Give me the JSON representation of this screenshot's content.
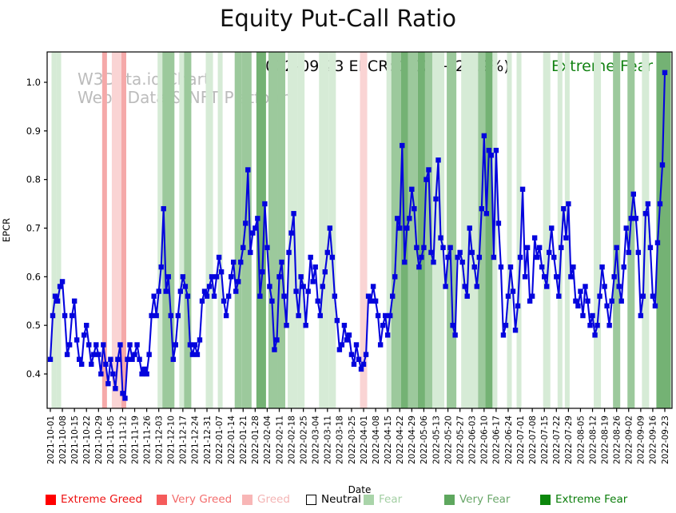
{
  "title": "Equity Put-Call Ratio",
  "watermark": {
    "line1": "W3Data.io Chart",
    "line2": "Web3 Data & NFT Platform"
  },
  "annotation": {
    "text": "2022-09-23 EPCR: 1.02 (+22.9%)",
    "status": "Extreme Fear",
    "status_color": "#128212"
  },
  "axes": {
    "x_label": "Date",
    "y_label": "EPCR",
    "y_tick_labels": [
      "0.4",
      "0.5",
      "0.6",
      "0.7",
      "0.8",
      "0.9",
      "1.0"
    ]
  },
  "legend": [
    {
      "label": "Extreme Greed",
      "swatch": "#ff0000",
      "text_color": "#ee1111",
      "border": "#ff0000"
    },
    {
      "label": "Very Greed",
      "swatch": "#f55b5b",
      "text_color": "#f36c6c",
      "border": "#f55b5b"
    },
    {
      "label": "Greed",
      "swatch": "#f8b6b6",
      "text_color": "#f4b4b4",
      "border": "#f8b6b6"
    },
    {
      "label": "Neutral",
      "swatch": "#ffffff",
      "text_color": "#000000",
      "border": "#000000"
    },
    {
      "label": "Fear",
      "swatch": "#a9d4a9",
      "text_color": "#a3cfa3",
      "border": "#a9d4a9"
    },
    {
      "label": "Very Fear",
      "swatch": "#5ea75e",
      "text_color": "#6aa76a",
      "border": "#5ea75e"
    },
    {
      "label": "Extreme Fear",
      "swatch": "#0c870c",
      "text_color": "#0a7d0a",
      "border": "#0c870c"
    }
  ],
  "chart_data": {
    "type": "line",
    "title": "Equity Put-Call Ratio",
    "xlabel": "Date",
    "ylabel": "EPCR",
    "ylim": [
      0.33,
      1.06
    ],
    "y_ticks": [
      0.4,
      0.5,
      0.6,
      0.7,
      0.8,
      0.9,
      1.0
    ],
    "grid": false,
    "legend_position": "bottom",
    "x_tick_labels": [
      "2021-10-01",
      "2021-10-08",
      "2021-10-15",
      "2021-10-22",
      "2021-10-29",
      "2021-11-05",
      "2021-11-12",
      "2021-11-19",
      "2021-11-26",
      "2021-12-03",
      "2021-12-10",
      "2021-12-17",
      "2021-12-24",
      "2021-12-31",
      "2022-01-07",
      "2022-01-14",
      "2022-01-21",
      "2022-01-28",
      "2022-02-04",
      "2022-02-11",
      "2022-02-18",
      "2022-02-25",
      "2022-03-04",
      "2022-03-11",
      "2022-03-18",
      "2022-03-25",
      "2022-04-01",
      "2022-04-08",
      "2022-04-15",
      "2022-04-22",
      "2022-04-29",
      "2022-05-06",
      "2022-05-13",
      "2022-05-20",
      "2022-05-27",
      "2022-06-03",
      "2022-06-10",
      "2022-06-17",
      "2022-06-24",
      "2022-07-01",
      "2022-07-08",
      "2022-07-15",
      "2022-07-22",
      "2022-07-29",
      "2022-08-05",
      "2022-08-12",
      "2022-08-19",
      "2022-08-26",
      "2022-09-02",
      "2022-09-09",
      "2022-09-16",
      "2022-09-23"
    ],
    "ticks_every_n_points": 5,
    "series": [
      {
        "name": "EPCR",
        "color": "#0404dd",
        "marker": "square",
        "last_point": {
          "date": "2022-09-23",
          "value": 1.02,
          "change_pct": 22.9,
          "sentiment": "Extreme Fear"
        },
        "values": [
          0.43,
          0.52,
          0.56,
          0.55,
          0.58,
          0.59,
          0.52,
          0.44,
          0.46,
          0.52,
          0.55,
          0.47,
          0.43,
          0.42,
          0.48,
          0.5,
          0.46,
          0.42,
          0.44,
          0.46,
          0.44,
          0.4,
          0.46,
          0.42,
          0.38,
          0.43,
          0.4,
          0.37,
          0.43,
          0.46,
          0.36,
          0.35,
          0.43,
          0.46,
          0.43,
          0.44,
          0.46,
          0.43,
          0.4,
          0.41,
          0.4,
          0.44,
          0.52,
          0.56,
          0.52,
          0.57,
          0.62,
          0.74,
          0.57,
          0.6,
          0.52,
          0.43,
          0.46,
          0.52,
          0.57,
          0.6,
          0.58,
          0.56,
          0.46,
          0.44,
          0.46,
          0.44,
          0.47,
          0.55,
          0.57,
          0.56,
          0.58,
          0.6,
          0.56,
          0.6,
          0.64,
          0.61,
          0.55,
          0.52,
          0.56,
          0.6,
          0.63,
          0.57,
          0.59,
          0.63,
          0.66,
          0.71,
          0.82,
          0.65,
          0.69,
          0.7,
          0.72,
          0.56,
          0.61,
          0.75,
          0.66,
          0.58,
          0.55,
          0.45,
          0.47,
          0.6,
          0.63,
          0.56,
          0.5,
          0.65,
          0.69,
          0.73,
          0.57,
          0.52,
          0.6,
          0.58,
          0.5,
          0.57,
          0.64,
          0.59,
          0.62,
          0.55,
          0.52,
          0.58,
          0.61,
          0.65,
          0.7,
          0.64,
          0.56,
          0.51,
          0.45,
          0.46,
          0.5,
          0.47,
          0.48,
          0.44,
          0.42,
          0.46,
          0.43,
          0.41,
          0.42,
          0.44,
          0.56,
          0.55,
          0.58,
          0.55,
          0.52,
          0.46,
          0.5,
          0.52,
          0.48,
          0.52,
          0.56,
          0.6,
          0.72,
          0.7,
          0.87,
          0.63,
          0.7,
          0.72,
          0.78,
          0.74,
          0.66,
          0.62,
          0.64,
          0.66,
          0.8,
          0.82,
          0.65,
          0.63,
          0.76,
          0.84,
          0.68,
          0.66,
          0.58,
          0.64,
          0.66,
          0.5,
          0.48,
          0.64,
          0.65,
          0.63,
          0.58,
          0.56,
          0.7,
          0.65,
          0.62,
          0.58,
          0.64,
          0.74,
          0.89,
          0.73,
          0.86,
          0.85,
          0.64,
          0.86,
          0.71,
          0.62,
          0.48,
          0.5,
          0.56,
          0.62,
          0.57,
          0.49,
          0.54,
          0.64,
          0.78,
          0.6,
          0.66,
          0.55,
          0.56,
          0.68,
          0.64,
          0.66,
          0.62,
          0.6,
          0.58,
          0.65,
          0.7,
          0.64,
          0.6,
          0.56,
          0.66,
          0.74,
          0.68,
          0.75,
          0.6,
          0.62,
          0.55,
          0.54,
          0.57,
          0.52,
          0.58,
          0.55,
          0.5,
          0.52,
          0.48,
          0.5,
          0.56,
          0.62,
          0.58,
          0.54,
          0.5,
          0.55,
          0.6,
          0.66,
          0.58,
          0.55,
          0.62,
          0.7,
          0.65,
          0.72,
          0.77,
          0.72,
          0.65,
          0.52,
          0.56,
          0.73,
          0.75,
          0.66,
          0.56,
          0.54,
          0.67,
          0.75,
          0.83,
          1.02
        ]
      }
    ],
    "band_colors": {
      "extreme_greed": "#ff0000",
      "very_greed": "#f5a9a9",
      "greed": "#fad4d4",
      "neutral": "#ffffff",
      "fear": "#d6ebd6",
      "very_fear": "#9cc99c",
      "extreme_fear": "#74b274"
    },
    "bands": [
      {
        "s": 1,
        "e": 2,
        "c": "fear"
      },
      {
        "s": 3,
        "e": 4,
        "c": "fear"
      },
      {
        "s": 22,
        "e": 23,
        "c": "very_greed"
      },
      {
        "s": 26,
        "e": 29,
        "c": "greed"
      },
      {
        "s": 30,
        "e": 31,
        "c": "very_greed"
      },
      {
        "s": 45,
        "e": 46,
        "c": "fear"
      },
      {
        "s": 47,
        "e": 51,
        "c": "very_fear"
      },
      {
        "s": 54,
        "e": 55,
        "c": "fear"
      },
      {
        "s": 56,
        "e": 58,
        "c": "very_fear"
      },
      {
        "s": 65,
        "e": 67,
        "c": "fear"
      },
      {
        "s": 70,
        "e": 71,
        "c": "fear"
      },
      {
        "s": 77,
        "e": 79,
        "c": "very_fear"
      },
      {
        "s": 80,
        "e": 83,
        "c": "very_fear"
      },
      {
        "s": 86,
        "e": 89,
        "c": "extreme_fear"
      },
      {
        "s": 91,
        "e": 94,
        "c": "very_fear"
      },
      {
        "s": 95,
        "e": 97,
        "c": "very_fear"
      },
      {
        "s": 99,
        "e": 102,
        "c": "fear"
      },
      {
        "s": 103,
        "e": 105,
        "c": "fear"
      },
      {
        "s": 112,
        "e": 115,
        "c": "fear"
      },
      {
        "s": 116,
        "e": 118,
        "c": "fear"
      },
      {
        "s": 129,
        "e": 131,
        "c": "greed"
      },
      {
        "s": 140,
        "e": 141,
        "c": "fear"
      },
      {
        "s": 142,
        "e": 145,
        "c": "very_fear"
      },
      {
        "s": 146,
        "e": 148,
        "c": "extreme_fear"
      },
      {
        "s": 149,
        "e": 152,
        "c": "very_fear"
      },
      {
        "s": 153,
        "e": 155,
        "c": "extreme_fear"
      },
      {
        "s": 156,
        "e": 158,
        "c": "very_fear"
      },
      {
        "s": 159,
        "e": 163,
        "c": "fear"
      },
      {
        "s": 165,
        "e": 168,
        "c": "very_fear"
      },
      {
        "s": 171,
        "e": 177,
        "c": "fear"
      },
      {
        "s": 178,
        "e": 180,
        "c": "very_fear"
      },
      {
        "s": 181,
        "e": 183,
        "c": "extreme_fear"
      },
      {
        "s": 184,
        "e": 185,
        "c": "fear"
      },
      {
        "s": 190,
        "e": 191,
        "c": "fear"
      },
      {
        "s": 194,
        "e": 195,
        "c": "fear"
      },
      {
        "s": 205,
        "e": 207,
        "c": "fear"
      },
      {
        "s": 211,
        "e": 212,
        "c": "fear"
      },
      {
        "s": 214,
        "e": 215,
        "c": "fear"
      },
      {
        "s": 226,
        "e": 228,
        "c": "fear"
      },
      {
        "s": 234,
        "e": 236,
        "c": "very_fear"
      },
      {
        "s": 240,
        "e": 242,
        "c": "very_fear"
      },
      {
        "s": 246,
        "e": 248,
        "c": "fear"
      },
      {
        "s": 252,
        "e": 257,
        "c": "extreme_fear"
      }
    ]
  }
}
